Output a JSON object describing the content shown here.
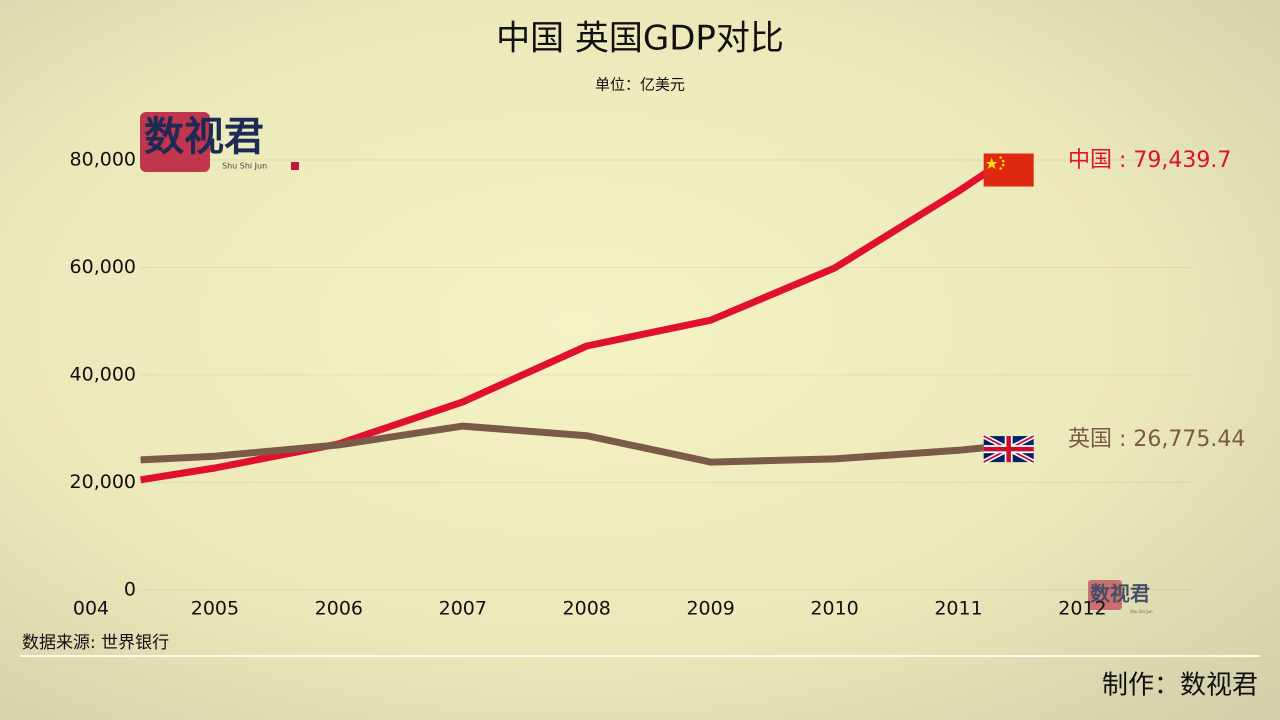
{
  "chart_data": {
    "type": "line",
    "title": "中国 英国GDP对比",
    "subtitle": "单位：亿美元",
    "source": "数据来源: 世界银行",
    "credit": "制作：数视君",
    "logo": {
      "text": "数视君",
      "subtext": "Shu Shi Jun"
    },
    "x": [
      2004.4,
      2005,
      2006,
      2007,
      2008,
      2009,
      2010,
      2011,
      2011.34
    ],
    "series": [
      {
        "name": "中国",
        "color": "#e0102e",
        "label": "中国 : 79,439.7",
        "values": [
          20500,
          22700,
          27200,
          35000,
          45400,
          50200,
          59900,
          74200,
          79439.7
        ]
      },
      {
        "name": "英国",
        "color": "#7a5a48",
        "label": "英国 : 26,775.44",
        "values": [
          24200,
          24900,
          27000,
          30500,
          28700,
          23800,
          24400,
          26000,
          26775.44
        ]
      }
    ],
    "xlim": [
      2003.9,
      2012.9
    ],
    "xticks": [
      {
        "value": 2004,
        "label": "004"
      },
      2005,
      2006,
      2007,
      2008,
      2009,
      2010,
      2011,
      2012
    ],
    "ylim": [
      0,
      80000
    ],
    "yticks": [
      0,
      {
        "value": 20000,
        "label": "20,000"
      },
      {
        "value": 40000,
        "label": "40,000"
      },
      {
        "value": 60000,
        "label": "60,000"
      },
      {
        "value": 80000,
        "label": "80,000"
      }
    ],
    "grid": true
  }
}
